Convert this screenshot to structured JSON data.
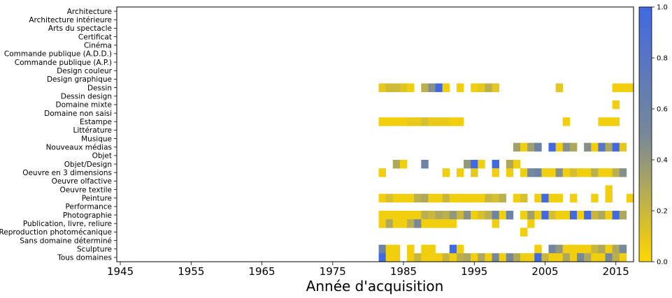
{
  "chart_data": {
    "type": "heatmap",
    "title": "",
    "xlabel": "Année d'acquisition",
    "ylabel": "",
    "x_ticks": [
      1945,
      1955,
      1965,
      1975,
      1985,
      1995,
      2005,
      2015
    ],
    "x_tick_labels": [
      "1945",
      "1955",
      "1965",
      "1975",
      "1985",
      "1995",
      "2005",
      "2015"
    ],
    "xlim": [
      1944.5,
      2017.5
    ],
    "categories": [
      "Architecture",
      "Architecture intérieure",
      "Arts du spectacle",
      "Certificat",
      "Cinéma",
      "Commande publique (A.D.D.)",
      "Commande publique (A.P.)",
      "Design couleur",
      "Design graphique",
      "Dessin",
      "Dessin design",
      "Domaine mixte",
      "Domaine non saisi",
      "Estampe",
      "Littérature",
      "Musique",
      "Nouveaux médias",
      "Objet",
      "Objet/Design",
      "Oeuvre en 3 dimensions",
      "Oeuvre olfactive",
      "Oeuvre textile",
      "Peinture",
      "Performance",
      "Photographie",
      "Publication, livre, reliure",
      "Reproduction photomécanique",
      "Sans domaine déterminé",
      "Sculpture",
      "Tous domaines"
    ],
    "colormap": {
      "low": "#ffd700",
      "mid": "#778899",
      "high": "#4169e1"
    },
    "colorbar_range": [
      0,
      1
    ],
    "colorbar_ticks": [
      "0.0",
      "0.2",
      "0.4",
      "0.6",
      "0.8",
      "1.0"
    ],
    "cells": {
      "Dessin": [
        [
          1982,
          0.1
        ],
        [
          1983,
          0.18
        ],
        [
          1984,
          0.18
        ],
        [
          1985,
          0.12
        ],
        [
          1986,
          0.05
        ],
        [
          1988,
          0.25
        ],
        [
          1989,
          0.45
        ],
        [
          1990,
          1.0
        ],
        [
          1991,
          0.05
        ],
        [
          1993,
          0.05
        ],
        [
          1995,
          0.05
        ],
        [
          1996,
          0.1
        ],
        [
          1997,
          0.25
        ],
        [
          1998,
          0.1
        ],
        [
          2007,
          0.1
        ],
        [
          2015,
          0.05
        ],
        [
          2016,
          0.05
        ],
        [
          2017,
          0.05
        ]
      ],
      "Domaine mixte": [
        [
          2015,
          0.05
        ]
      ],
      "Estampe": [
        [
          1982,
          0.05
        ],
        [
          1983,
          0.05
        ],
        [
          1984,
          0.05
        ],
        [
          1985,
          0.05
        ],
        [
          1986,
          0.08
        ],
        [
          1987,
          0.08
        ],
        [
          1988,
          0.15
        ],
        [
          1989,
          0.08
        ],
        [
          1990,
          0.08
        ],
        [
          1991,
          0.08
        ],
        [
          1992,
          0.05
        ],
        [
          1993,
          0.05
        ],
        [
          2008,
          0.05
        ],
        [
          2013,
          0.05
        ],
        [
          2014,
          0.05
        ],
        [
          2015,
          0.05
        ]
      ],
      "Nouveaux médias": [
        [
          2001,
          0.35
        ],
        [
          2002,
          0.05
        ],
        [
          2003,
          0.35
        ],
        [
          2004,
          0.6
        ],
        [
          2006,
          1.0
        ],
        [
          2007,
          0.05
        ],
        [
          2008,
          0.45
        ],
        [
          2009,
          0.3
        ],
        [
          2011,
          0.45
        ],
        [
          2012,
          0.05
        ],
        [
          2013,
          0.8
        ],
        [
          2014,
          0.3
        ],
        [
          2015,
          1.0
        ],
        [
          2016,
          0.1
        ]
      ],
      "Objet/Design": [
        [
          1984,
          0.3
        ],
        [
          1985,
          0.05
        ],
        [
          1988,
          0.6
        ],
        [
          1994,
          0.4
        ],
        [
          1995,
          1.0
        ],
        [
          1996,
          0.05
        ],
        [
          1998,
          1.0
        ],
        [
          2000,
          0.3
        ],
        [
          2001,
          0.05
        ]
      ],
      "Oeuvre en 3 dimensions": [
        [
          1982,
          0.05
        ],
        [
          1991,
          0.05
        ],
        [
          1993,
          0.05
        ],
        [
          1995,
          0.1
        ],
        [
          1998,
          0.05
        ],
        [
          2000,
          0.05
        ],
        [
          2002,
          0.05
        ],
        [
          2003,
          0.5
        ],
        [
          2004,
          0.6
        ],
        [
          2005,
          0.05
        ],
        [
          2006,
          0.05
        ],
        [
          2007,
          0.45
        ],
        [
          2008,
          0.05
        ],
        [
          2009,
          0.15
        ],
        [
          2010,
          0.05
        ],
        [
          2011,
          0.05
        ],
        [
          2012,
          0.25
        ],
        [
          2013,
          0.05
        ],
        [
          2014,
          0.05
        ],
        [
          2015,
          0.25
        ],
        [
          2016,
          0.45
        ]
      ],
      "Oeuvre textile": [
        [
          2014,
          0.05
        ]
      ],
      "Peinture": [
        [
          1982,
          0.05
        ],
        [
          1983,
          0.15
        ],
        [
          1984,
          0.05
        ],
        [
          1985,
          0.05
        ],
        [
          1986,
          0.05
        ],
        [
          1987,
          0.25
        ],
        [
          1988,
          0.3
        ],
        [
          1989,
          0.05
        ],
        [
          1990,
          0.05
        ],
        [
          1991,
          0.2
        ],
        [
          1992,
          0.05
        ],
        [
          1993,
          0.05
        ],
        [
          1994,
          0.05
        ],
        [
          1995,
          0.05
        ],
        [
          1996,
          0.05
        ],
        [
          1997,
          0.2
        ],
        [
          1998,
          0.15
        ],
        [
          1999,
          0.25
        ],
        [
          2001,
          0.05
        ],
        [
          2002,
          0.15
        ],
        [
          2004,
          0.05
        ],
        [
          2005,
          1.0
        ],
        [
          2006,
          0.05
        ],
        [
          2007,
          0.05
        ],
        [
          2009,
          0.05
        ],
        [
          2012,
          0.05
        ],
        [
          2014,
          0.05
        ],
        [
          2017,
          0.05
        ]
      ],
      "Photographie": [
        [
          1982,
          0.05
        ],
        [
          1983,
          0.05
        ],
        [
          1984,
          0.05
        ],
        [
          1985,
          0.05
        ],
        [
          1986,
          0.05
        ],
        [
          1987,
          0.05
        ],
        [
          1988,
          0.25
        ],
        [
          1989,
          0.2
        ],
        [
          1990,
          0.3
        ],
        [
          1991,
          0.25
        ],
        [
          1992,
          0.4
        ],
        [
          1993,
          0.2
        ],
        [
          1994,
          0.45
        ],
        [
          1995,
          0.05
        ],
        [
          1996,
          0.15
        ],
        [
          1997,
          0.25
        ],
        [
          1998,
          0.6
        ],
        [
          1999,
          0.05
        ],
        [
          2000,
          0.6
        ],
        [
          2002,
          0.05
        ],
        [
          2003,
          0.35
        ],
        [
          2004,
          0.05
        ],
        [
          2005,
          1.0
        ],
        [
          2006,
          0.15
        ],
        [
          2007,
          0.05
        ],
        [
          2008,
          0.05
        ],
        [
          2009,
          1.0
        ],
        [
          2010,
          0.05
        ],
        [
          2011,
          1.0
        ],
        [
          2012,
          0.2
        ],
        [
          2013,
          0.3
        ],
        [
          2014,
          0.05
        ],
        [
          2015,
          1.0
        ],
        [
          2016,
          0.3
        ]
      ],
      "Publication, livre, reliure": [
        [
          1982,
          0.05
        ],
        [
          1983,
          0.3
        ],
        [
          1984,
          0.05
        ],
        [
          1985,
          0.05
        ],
        [
          1986,
          0.25
        ],
        [
          1987,
          0.5
        ],
        [
          1988,
          0.05
        ],
        [
          1989,
          0.05
        ],
        [
          1990,
          0.05
        ],
        [
          1991,
          0.05
        ],
        [
          1992,
          0.05
        ],
        [
          1998,
          0.05
        ],
        [
          2003,
          0.05
        ]
      ],
      "Reproduction photomécanique": [
        [
          2002,
          0.05
        ]
      ],
      "Sculpture": [
        [
          1982,
          0.6
        ],
        [
          1983,
          0.05
        ],
        [
          1984,
          0.05
        ],
        [
          1986,
          0.05
        ],
        [
          1988,
          0.05
        ],
        [
          1989,
          0.05
        ],
        [
          1992,
          1.0
        ],
        [
          1993,
          0.05
        ],
        [
          2004,
          0.05
        ],
        [
          2006,
          0.55
        ],
        [
          2007,
          0.4
        ],
        [
          2008,
          0.05
        ],
        [
          2009,
          0.05
        ],
        [
          2010,
          0.05
        ],
        [
          2011,
          0.05
        ],
        [
          2012,
          0.2
        ],
        [
          2013,
          0.3
        ],
        [
          2014,
          0.05
        ],
        [
          2015,
          0.3
        ],
        [
          2016,
          0.5
        ]
      ],
      "Tous domaines": [
        [
          1982,
          1.0
        ],
        [
          1983,
          0.05
        ],
        [
          1984,
          0.05
        ],
        [
          1986,
          0.05
        ],
        [
          1987,
          0.2
        ],
        [
          1988,
          0.05
        ],
        [
          1989,
          0.05
        ],
        [
          1990,
          0.05
        ],
        [
          1991,
          0.2
        ],
        [
          1992,
          0.05
        ],
        [
          1993,
          0.25
        ],
        [
          1994,
          0.3
        ],
        [
          1995,
          0.05
        ],
        [
          1996,
          0.3
        ],
        [
          1997,
          0.05
        ],
        [
          1998,
          0.5
        ],
        [
          1999,
          0.05
        ],
        [
          2000,
          0.5
        ],
        [
          2001,
          0.3
        ],
        [
          2002,
          0.05
        ],
        [
          2003,
          0.05
        ],
        [
          2004,
          1.0
        ],
        [
          2005,
          0.2
        ],
        [
          2006,
          0.05
        ],
        [
          2007,
          0.05
        ],
        [
          2008,
          0.3
        ],
        [
          2009,
          0.05
        ],
        [
          2010,
          0.5
        ],
        [
          2011,
          0.3
        ],
        [
          2012,
          0.05
        ],
        [
          2013,
          0.05
        ],
        [
          2014,
          0.5
        ],
        [
          2015,
          0.25
        ],
        [
          2016,
          0.05
        ]
      ]
    }
  }
}
